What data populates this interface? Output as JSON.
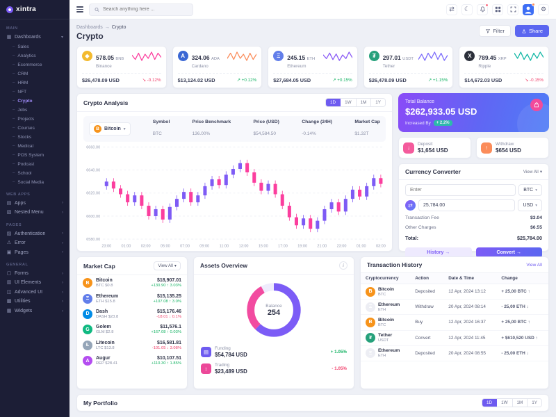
{
  "brand": "xintra",
  "header": {
    "search_placeholder": "Search anything here ..."
  },
  "breadcrumb": {
    "parent": "Dashboards",
    "sep": "→",
    "current": "Crypto",
    "title": "Crypto"
  },
  "actions": {
    "filter": "Filter",
    "share": "Share"
  },
  "sidebar": {
    "entries": [
      {
        "type": "section",
        "label": "MAIN",
        "inter": "false"
      },
      {
        "type": "item",
        "icon": "▦",
        "label": "Dashboards",
        "chev": "▾",
        "inter": "true"
      },
      {
        "type": "sub",
        "label": "Sales",
        "inter": "true"
      },
      {
        "type": "sub",
        "label": "Analytics",
        "inter": "true"
      },
      {
        "type": "sub",
        "label": "Ecommerce",
        "inter": "true"
      },
      {
        "type": "sub",
        "label": "CRM",
        "inter": "true"
      },
      {
        "type": "sub",
        "label": "HRM",
        "inter": "true"
      },
      {
        "type": "sub",
        "label": "NFT",
        "inter": "true"
      },
      {
        "type": "sub active",
        "label": "Crypto",
        "inter": "true"
      },
      {
        "type": "sub",
        "label": "Jobs",
        "inter": "true"
      },
      {
        "type": "sub",
        "label": "Projects",
        "inter": "true"
      },
      {
        "type": "sub",
        "label": "Courses",
        "inter": "true"
      },
      {
        "type": "sub",
        "label": "Stocks",
        "inter": "true"
      },
      {
        "type": "sub",
        "label": "Medical",
        "inter": "true"
      },
      {
        "type": "sub",
        "label": "POS System",
        "inter": "true"
      },
      {
        "type": "sub",
        "label": "Podcast",
        "inter": "true"
      },
      {
        "type": "sub",
        "label": "School",
        "inter": "true"
      },
      {
        "type": "sub",
        "label": "Social Media",
        "inter": "true"
      },
      {
        "type": "section",
        "label": "WEB APPS",
        "inter": "false"
      },
      {
        "type": "item",
        "icon": "▤",
        "label": "Apps",
        "chev": "›",
        "inter": "true"
      },
      {
        "type": "item",
        "icon": "▧",
        "label": "Nested Menu",
        "chev": "›",
        "inter": "true"
      },
      {
        "type": "section",
        "label": "PAGES",
        "inter": "false"
      },
      {
        "type": "item",
        "icon": "▨",
        "label": "Authentication",
        "chev": "›",
        "inter": "true"
      },
      {
        "type": "item",
        "icon": "⚠",
        "label": "Error",
        "chev": "›",
        "inter": "true"
      },
      {
        "type": "item",
        "icon": "▣",
        "label": "Pages",
        "chev": "›",
        "inter": "true"
      },
      {
        "type": "section",
        "label": "GENERAL",
        "inter": "false"
      },
      {
        "type": "item",
        "icon": "▢",
        "label": "Forms",
        "chev": "›",
        "inter": "true"
      },
      {
        "type": "item",
        "icon": "▥",
        "label": "UI Elements",
        "chev": "›",
        "inter": "true"
      },
      {
        "type": "item",
        "icon": "◫",
        "label": "Advanced UI",
        "chev": "›",
        "inter": "true"
      },
      {
        "type": "item",
        "icon": "▩",
        "label": "Utilities",
        "chev": "›",
        "inter": "true"
      },
      {
        "type": "item",
        "icon": "▦",
        "label": "Widgets",
        "chev": "›",
        "inter": "true"
      }
    ]
  },
  "tabs": [
    {
      "label": "1D",
      "cls": "active"
    },
    {
      "label": "1W",
      "cls": ""
    },
    {
      "label": "1M",
      "cls": ""
    },
    {
      "label": "1Y",
      "cls": ""
    }
  ],
  "crypto_cards": [
    {
      "amount": "578.05",
      "ticker": "BNB",
      "name": "Binance",
      "icon": "◆",
      "icon_bg": "#f3ba2f",
      "usd": "$26,478.09 USD",
      "change": "↘ -0.12%",
      "trend": "down",
      "spark_color": "#fb3e9e",
      "spark": [
        8,
        4,
        10,
        3,
        9,
        5,
        11,
        4,
        10,
        6
      ]
    },
    {
      "amount": "324.06",
      "ticker": "ADA",
      "name": "Cardano",
      "icon": "A",
      "icon_bg": "#3a67d4",
      "usd": "$13,124.02 USD",
      "change": "↗ +0.12%",
      "trend": "up",
      "spark_color": "#fb8c5a",
      "spark": [
        5,
        10,
        4,
        11,
        5,
        9,
        3,
        10,
        4,
        9
      ]
    },
    {
      "amount": "245.15",
      "ticker": "ETH",
      "name": "Ethereum",
      "icon": "Ξ",
      "icon_bg": "#627eea",
      "usd": "$27,684.05 USD",
      "change": "↗ +0.15%",
      "trend": "up",
      "spark_color": "#8b5cf6",
      "spark": [
        9,
        5,
        11,
        4,
        10,
        3,
        9,
        5,
        12,
        6
      ]
    },
    {
      "amount": "297.01",
      "ticker": "USDT",
      "name": "Tether",
      "icon": "₮",
      "icon_bg": "#26a17b",
      "usd": "$26,478.09 USD",
      "change": "↗ +1.15%",
      "trend": "up",
      "spark_color": "#7c6cfb",
      "spark": [
        4,
        9,
        3,
        10,
        5,
        11,
        4,
        10,
        3,
        8
      ]
    },
    {
      "amount": "789.45",
      "ticker": "XRP",
      "name": "Ripple",
      "icon": "X",
      "icon_bg": "#2b2f3a",
      "usd": "$14,672.03 USD",
      "change": "↘ -0.15%",
      "trend": "down",
      "spark_color": "#14b8a6",
      "spark": [
        10,
        5,
        11,
        4,
        9,
        3,
        10,
        5,
        11,
        6
      ]
    }
  ],
  "analysis": {
    "title": "Crypto Analysis",
    "selector": "Bitcoin",
    "selector_icon": "B",
    "selector_chev": "▾",
    "meta": [
      {
        "label": "Symbol",
        "value": "BTC",
        "vcls": ""
      },
      {
        "label": "Price Benchmark",
        "value": "136.00%",
        "vcls": ""
      },
      {
        "label": "Price (USD)",
        "value": "$54,584.50",
        "vcls": "pink"
      },
      {
        "label": "Change (24H)",
        "value": "-0.14%",
        "vcls": "down"
      },
      {
        "label": "Market Cap",
        "value": "$1.32T",
        "vcls": ""
      }
    ]
  },
  "balance": {
    "title": "Total Balance",
    "amount": "$262,933.05 USD",
    "sub": "Increased By",
    "badge": "+ 2.2%"
  },
  "deposit": {
    "label": "Deposit",
    "amount": "$1,654 USD",
    "icon": "↓"
  },
  "withdraw": {
    "label": "Withdraw",
    "amount": "$654 USD",
    "icon": "↑"
  },
  "converter": {
    "title": "Currency Converter",
    "view_all": "View All",
    "view_all_chev": "▾",
    "from_placeholder": "Enter",
    "from_currency": "BTC",
    "swap_icon": "⇄",
    "to_value": "25,784.00",
    "to_currency": "USD",
    "cur_chev": "▾",
    "fee_label": "Transaction Fee",
    "fee": "$3.04",
    "charges_label": "Other Charges",
    "charges": "$6.55",
    "total_label": "Total:",
    "total": "$25,784.00",
    "history": "History →",
    "convert": "Convert →"
  },
  "market_cap": {
    "title": "Market Cap",
    "view_all": "View All",
    "view_all_chev": "▾",
    "rows": [
      {
        "icon": "B",
        "icon_bg": "#f7931a",
        "icon_fg": "#ffffff",
        "name": "Bitcoin",
        "sub": "BTC  $0.8",
        "value": "$18,907.01",
        "delta": "+130.90 ↑ 3.03%",
        "trend": "up"
      },
      {
        "icon": "Ξ",
        "icon_bg": "#627eea",
        "icon_fg": "#ffffff",
        "name": "Ethereum",
        "sub": "ETH  $15.8",
        "value": "$15,135.25",
        "delta": "+107.08 ↑ 3.0%",
        "trend": "up"
      },
      {
        "icon": "D",
        "icon_bg": "#008ce7",
        "icon_fg": "#ffffff",
        "name": "Dash",
        "sub": "DASH  $23.8",
        "value": "$15,176.46",
        "delta": "-18.01 ↓ 0.1%",
        "trend": "down"
      },
      {
        "icon": "G",
        "icon_bg": "#10b981",
        "icon_fg": "#ffffff",
        "name": "Golem",
        "sub": "GLM  $2.8",
        "value": "$11,576.1",
        "delta": "+167.08 ↑ 0.03%",
        "trend": "up"
      },
      {
        "icon": "Ł",
        "icon_bg": "#95a5b8",
        "icon_fg": "#ffffff",
        "name": "Litecoin",
        "sub": "LTC  $13.8",
        "value": "$16,581.81",
        "delta": "-101.05 ↓ 3.08%",
        "trend": "down"
      },
      {
        "icon": "A",
        "icon_bg": "#b44df0",
        "icon_fg": "#ffffff",
        "name": "Augur",
        "sub": "REP  $28.41",
        "value": "$10,107.51",
        "delta": "+110.30 ↑ 1.85%",
        "trend": "up"
      }
    ]
  },
  "assets_overview": {
    "title": "Assets Overview",
    "info_icon": "i",
    "balance_label": "Balance",
    "balance": "254",
    "donut": [
      {
        "color": "#7c5cf6",
        "pct": 62
      },
      {
        "color": "#f24ba0",
        "pct": 30
      },
      {
        "color": "#efecfd",
        "pct": 8
      }
    ],
    "rows": [
      {
        "icon": "▤",
        "icon_bg": "#6e5bf0",
        "label": "Funding",
        "value": "$54,784 USD",
        "badge": "+ 1.05%",
        "trend": "up"
      },
      {
        "icon": "↕",
        "icon_bg": "#ec4899",
        "label": "Trading",
        "value": "$23,489 USD",
        "badge": "- 1.05%",
        "trend": "down"
      }
    ]
  },
  "transactions": {
    "title": "Transaction History",
    "view_all": "View All",
    "headers": [
      "Cryptocurrency",
      "Action",
      "Date & Time",
      "Change"
    ],
    "rows": [
      {
        "icon": "B",
        "icon_bg": "#f7931a",
        "icon_fg": "#ffffff",
        "name": "Bitcoin",
        "ticker": "BTC",
        "action": "Deposited",
        "date": "12 Apr, 2024 13:12",
        "change": "+ 25,00 BTC ↑",
        "trend": "up"
      },
      {
        "icon": "Ξ",
        "icon_bg": "#edeef4",
        "icon_fg": "#3b3f58",
        "name": "Ethereum",
        "ticker": "ETH",
        "action": "Withdraw",
        "date": "20 Apr, 2024 08:14",
        "change": "- 25,00 ETH ↓",
        "trend": "down"
      },
      {
        "icon": "B",
        "icon_bg": "#f7931a",
        "icon_fg": "#ffffff",
        "name": "Bitcoin",
        "ticker": "BTC",
        "action": "Buy",
        "date": "12 Apr, 2024 16:37",
        "change": "+ 25,00 BTC ↑",
        "trend": "up"
      },
      {
        "icon": "₮",
        "icon_bg": "#26a17b",
        "icon_fg": "#ffffff",
        "name": "Tether",
        "ticker": "USDT",
        "action": "Convert",
        "date": "12 Apr, 2024 11:45",
        "change": "+ $610,520 USD ↑",
        "trend": "up"
      },
      {
        "icon": "Ξ",
        "icon_bg": "#edeef4",
        "icon_fg": "#3b3f58",
        "name": "Ethereum",
        "ticker": "ETH",
        "action": "Deposited",
        "date": "20 Apr, 2024 08:55",
        "change": "- 25,00 ETH ↓",
        "trend": "down"
      }
    ]
  },
  "portfolio": {
    "title": "My Portfolio"
  },
  "chart_data": {
    "type": "candlestick",
    "title": "Crypto Analysis",
    "symbol": "BTC",
    "ylim": [
      6580,
      6660
    ],
    "y_ticks": [
      6660,
      6640,
      6620,
      6600,
      6580
    ],
    "x_labels": [
      "23:00",
      "01:00",
      "03:00",
      "05:00",
      "07:00",
      "09:00",
      "11:00",
      "13:00",
      "15:00",
      "17:00",
      "19:00",
      "21:00",
      "23:00",
      "01:00",
      "03:00"
    ],
    "colors": {
      "up": "#7e5bf5",
      "down": "#fb3e9e"
    },
    "candles": [
      [
        6626,
        6633,
        6623,
        6630
      ],
      [
        6630,
        6633,
        6621,
        6624
      ],
      [
        6624,
        6627,
        6616,
        6619
      ],
      [
        6619,
        6622,
        6609,
        6612
      ],
      [
        6612,
        6621,
        6609,
        6618
      ],
      [
        6618,
        6621,
        6606,
        6609
      ],
      [
        6609,
        6612,
        6597,
        6600
      ],
      [
        6600,
        6609,
        6597,
        6606
      ],
      [
        6606,
        6609,
        6594,
        6597
      ],
      [
        6597,
        6611,
        6594,
        6608
      ],
      [
        6608,
        6618,
        6605,
        6615
      ],
      [
        6615,
        6624,
        6612,
        6621
      ],
      [
        6621,
        6624,
        6609,
        6612
      ],
      [
        6612,
        6621,
        6609,
        6618
      ],
      [
        6618,
        6629,
        6615,
        6626
      ],
      [
        6626,
        6635,
        6623,
        6632
      ],
      [
        6632,
        6635,
        6624,
        6627
      ],
      [
        6627,
        6639,
        6624,
        6636
      ],
      [
        6636,
        6644,
        6633,
        6641
      ],
      [
        6641,
        6649,
        6638,
        6646
      ],
      [
        6646,
        6649,
        6635,
        6638
      ],
      [
        6638,
        6641,
        6626,
        6629
      ],
      [
        6629,
        6632,
        6619,
        6622
      ],
      [
        6622,
        6631,
        6619,
        6628
      ],
      [
        6628,
        6631,
        6616,
        6619
      ],
      [
        6619,
        6622,
        6606,
        6609
      ],
      [
        6609,
        6612,
        6596,
        6599
      ],
      [
        6599,
        6602,
        6589,
        6592
      ],
      [
        6592,
        6601,
        6589,
        6598
      ],
      [
        6598,
        6601,
        6586,
        6589
      ],
      [
        6589,
        6599,
        6586,
        6596
      ],
      [
        6596,
        6609,
        6593,
        6606
      ],
      [
        6606,
        6615,
        6603,
        6612
      ],
      [
        6612,
        6615,
        6601,
        6604
      ],
      [
        6604,
        6618,
        6601,
        6615
      ],
      [
        6615,
        6626,
        6612,
        6623
      ],
      [
        6623,
        6626,
        6614,
        6617
      ],
      [
        6617,
        6629,
        6614,
        6626
      ],
      [
        6626,
        6636,
        6623,
        6633
      ],
      [
        6633,
        6636,
        6625,
        6628
      ]
    ]
  }
}
